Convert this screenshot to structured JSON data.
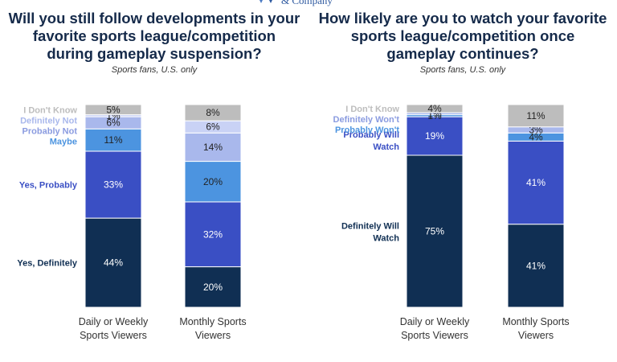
{
  "logo_text": "& Company",
  "panels": [
    {
      "title": "Will you still follow developments in your favorite sports league/competition during gameplay suspension?",
      "subtitle": "Sports fans, U.S. only"
    },
    {
      "title": "How likely are you to watch your favorite sports league/competition once gameplay continues?",
      "subtitle": "Sports fans, U.S. only"
    }
  ],
  "colors": {
    "darkest": "#102f53",
    "dark_blue": "#3a4fc4",
    "mid_blue": "#4c94e0",
    "light_blue": "#a9b8ec",
    "lighter_blue": "#c9d2f5",
    "grey": "#bdbdbd"
  },
  "chart_data": [
    {
      "type": "bar",
      "stacked": true,
      "categories": [
        "Daily or Weekly Sports Viewers",
        "Monthly Sports Viewers"
      ],
      "ylim": [
        0,
        100
      ],
      "series": [
        {
          "name": "Yes, Definitely",
          "values": [
            44,
            20
          ],
          "color": "#102f53",
          "label_color": "#102f53"
        },
        {
          "name": "Yes, Probably",
          "values": [
            33,
            32
          ],
          "color": "#3a4fc4",
          "label_color": "#3a4fc4"
        },
        {
          "name": "Maybe",
          "values": [
            11,
            20
          ],
          "color": "#4c94e0",
          "label_color": "#4c94e0"
        },
        {
          "name": "Probably Not",
          "values": [
            6,
            14
          ],
          "color": "#a9b8ec",
          "label_color": "#8a9be0"
        },
        {
          "name": "Definitely Not",
          "values": [
            1,
            6
          ],
          "color": "#c9d2f5",
          "label_color": "#a9b8ec"
        },
        {
          "name": "I Don't Know",
          "values": [
            5,
            8
          ],
          "color": "#bdbdbd",
          "label_color": "#bdbdbd"
        }
      ],
      "value_labels": [
        [
          "44%",
          "33%",
          "11%",
          "6%",
          "1%",
          "5%"
        ],
        [
          "20%",
          "32%",
          "20%",
          "14%",
          "6%",
          "8%"
        ]
      ]
    },
    {
      "type": "bar",
      "stacked": true,
      "categories": [
        "Daily or Weekly Sports Viewers",
        "Monthly Sports Viewers"
      ],
      "ylim": [
        0,
        100
      ],
      "series": [
        {
          "name": "Definitely Will Watch",
          "values": [
            75,
            41
          ],
          "color": "#102f53",
          "label_color": "#102f53"
        },
        {
          "name": "Probably Will Watch",
          "values": [
            19,
            41
          ],
          "color": "#3a4fc4",
          "label_color": "#3a4fc4"
        },
        {
          "name": "Probably Won't",
          "values": [
            1,
            4
          ],
          "color": "#4c94e0",
          "label_color": "#4c94e0"
        },
        {
          "name": "Definitely Won't",
          "values": [
            1,
            3
          ],
          "color": "#a9b8ec",
          "label_color": "#8a9be0"
        },
        {
          "name": "I Don't Know",
          "values": [
            4,
            11
          ],
          "color": "#bdbdbd",
          "label_color": "#bdbdbd"
        }
      ],
      "value_labels": [
        [
          "75%",
          "19%",
          "1%",
          "1%",
          "4%"
        ],
        [
          "41%",
          "41%",
          "4%",
          "3%",
          "11%"
        ]
      ]
    }
  ]
}
